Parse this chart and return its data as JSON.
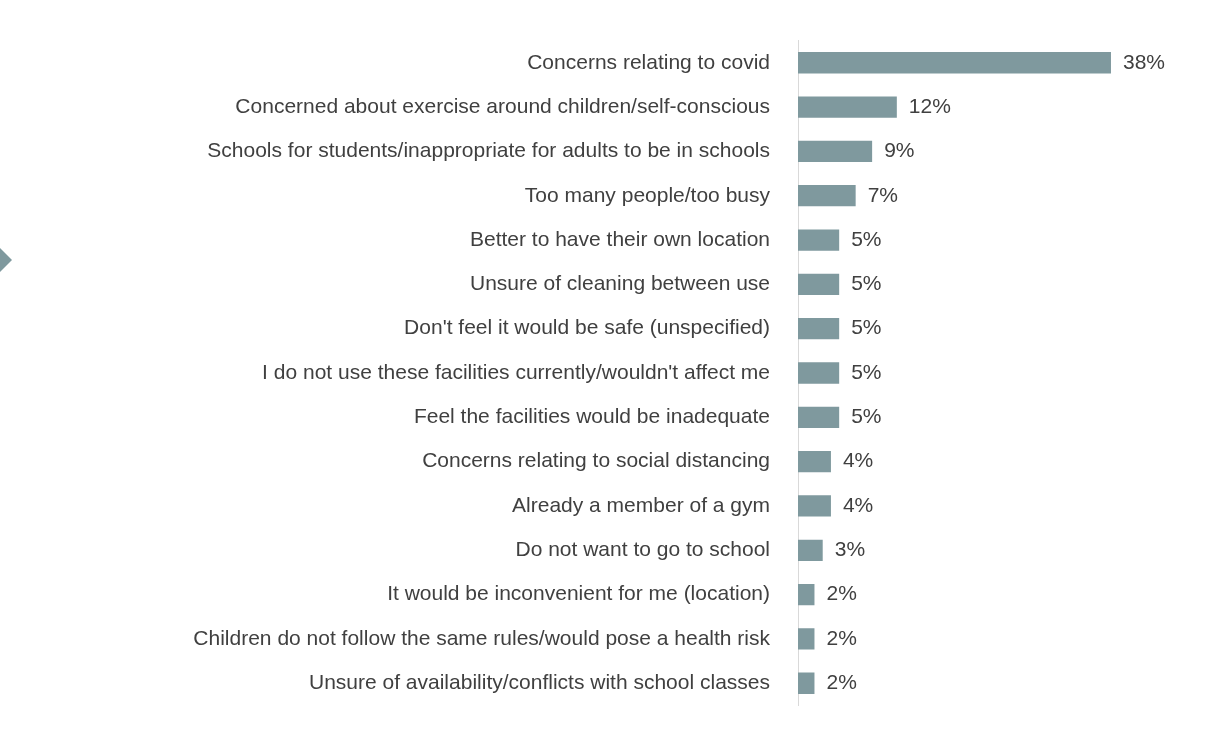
{
  "chart_data": {
    "type": "bar",
    "orientation": "horizontal",
    "categories": [
      "Concerns relating to covid",
      "Concerned about exercise around children/self-conscious",
      "Schools for students/inappropriate for adults to be in schools",
      "Too many people/too busy",
      "Better to have their own location",
      "Unsure of cleaning between use",
      "Don't feel it would be safe (unspecified)",
      "I do not use these facilities currently/wouldn't affect me",
      "Feel the facilities would be inadequate",
      "Concerns relating to social distancing",
      "Already a member of a gym",
      "Do not want to go to school",
      "It would be inconvenient for me (location)",
      "Children do not follow the same rules/would pose a health risk",
      "Unsure of availability/conflicts with school classes"
    ],
    "values": [
      38,
      12,
      9,
      7,
      5,
      5,
      5,
      5,
      5,
      4,
      4,
      3,
      2,
      2,
      2
    ],
    "value_labels": [
      "38%",
      "12%",
      "9%",
      "7%",
      "5%",
      "5%",
      "5%",
      "5%",
      "5%",
      "4%",
      "4%",
      "3%",
      "2%",
      "2%",
      "2%"
    ],
    "color": "#7f999e",
    "grid": false,
    "legend": false,
    "tick_labels": "y"
  }
}
